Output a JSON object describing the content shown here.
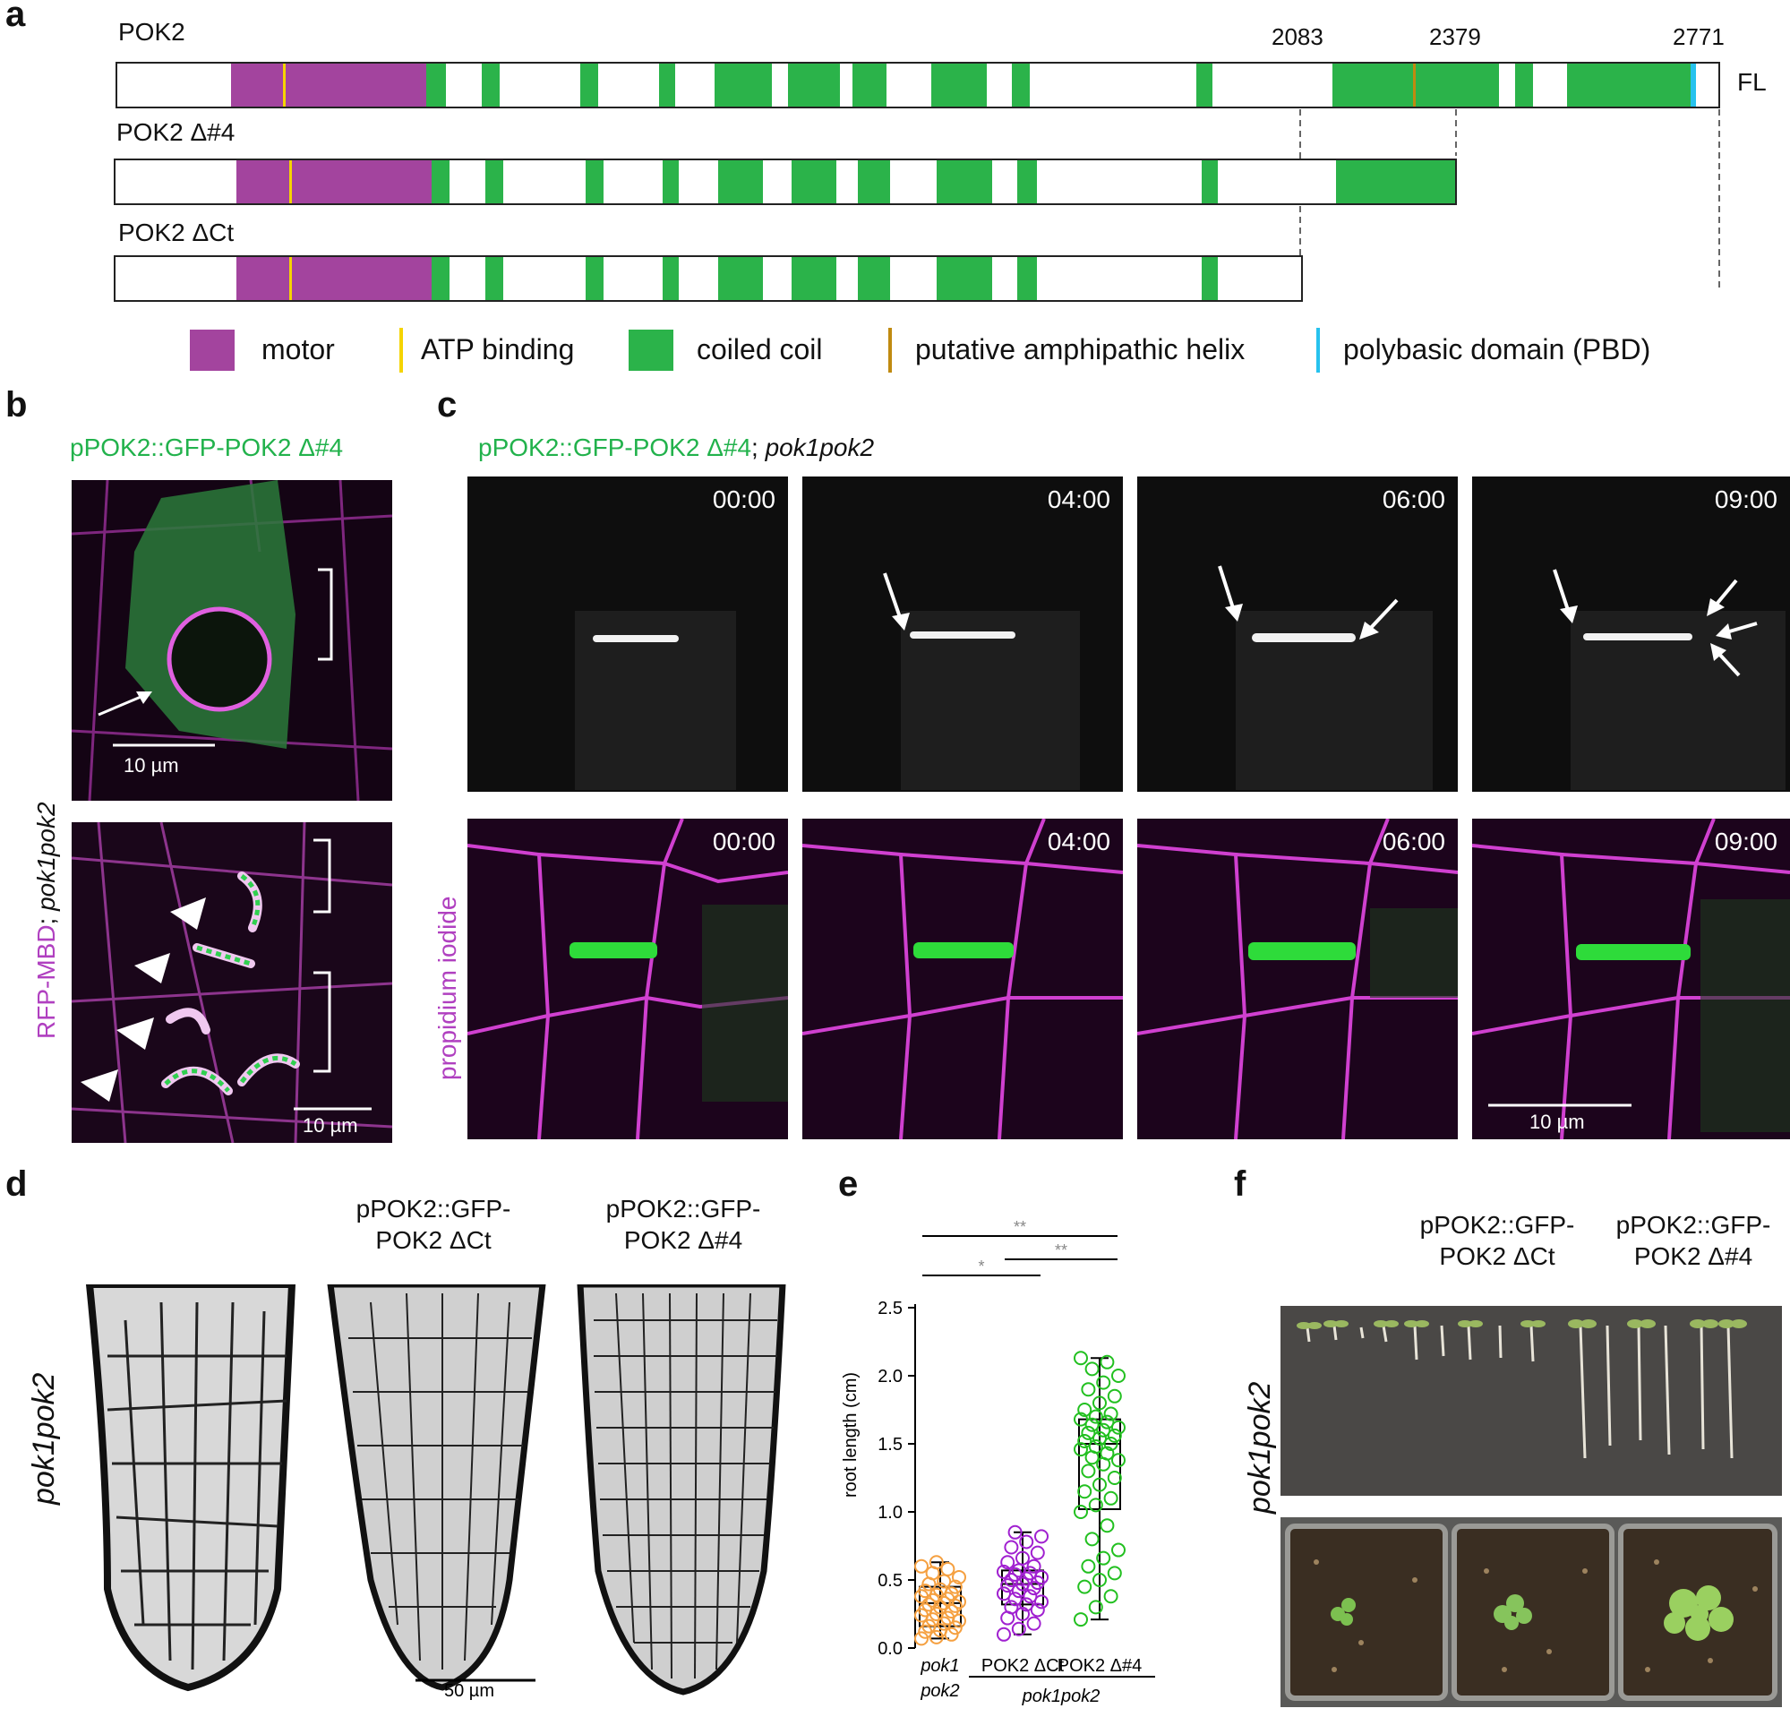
{
  "panel_labels": {
    "a": "a",
    "b": "b",
    "c": "c",
    "d": "d",
    "e": "e",
    "f": "f"
  },
  "panel_a": {
    "constructs": [
      {
        "name": "POK2",
        "end_label": "FL"
      },
      {
        "name": "POK2 Δ#4"
      },
      {
        "name": "POK2 ΔCt"
      }
    ],
    "positions": [
      "2083",
      "2379",
      "2771"
    ],
    "legend": [
      {
        "label": "motor",
        "color": "#a3449e"
      },
      {
        "label": "ATP binding",
        "color": "#f5d400"
      },
      {
        "label": "coiled coil",
        "color": "#2bb34a"
      },
      {
        "label": "putative amphipathic helix",
        "color": "#c08a10"
      },
      {
        "label": "polybasic domain (PBD)",
        "color": "#26c2ee"
      }
    ]
  },
  "panel_b": {
    "title": "pPOK2::GFP-POK2 Δ#4",
    "side_label_1": "RFP-MBD",
    "side_label_2": "; ",
    "side_label_3": "pok1pok2",
    "scale_top": "10 µm",
    "scale_bottom": "10 µm"
  },
  "panel_c": {
    "title_green": "pPOK2::GFP-POK2 Δ#4",
    "title_sep": "; ",
    "title_ital": "pok1pok2",
    "row_label": "propidium iodide",
    "timestamps": [
      "00:00",
      "04:00",
      "06:00",
      "09:00"
    ],
    "scale": "10 µm"
  },
  "panel_d": {
    "row_label": "pok1pok2",
    "col_titles": [
      "",
      "pPOK2::GFP-\nPOK2 ΔCt",
      "pPOK2::GFP-\nPOK2 Δ#4"
    ],
    "scale": "50 µm"
  },
  "panel_f": {
    "row_label": "pok1pok2",
    "col_titles": [
      "pPOK2::GFP-\nPOK2 ΔCt",
      "pPOK2::GFP-\nPOK2 Δ#4"
    ]
  },
  "chart_data": {
    "type": "box",
    "ylabel": "root length (cm)",
    "ylim": [
      0,
      2.5
    ],
    "yticks": [
      "0.0",
      "0.5",
      "1.0",
      "1.5",
      "2.0",
      "2.5"
    ],
    "categories": [
      "pok1 pok2",
      "POK2 ΔCt",
      "POK2 Δ#4"
    ],
    "category_lines": [
      [
        "pok1",
        "pok2"
      ],
      [
        "POK2 ΔCt"
      ],
      [
        "POK2 Δ#4"
      ]
    ],
    "group_label": "pok1pok2",
    "series": [
      {
        "colors": "#f5a040",
        "min": 0.07,
        "q1": 0.16,
        "median": 0.33,
        "q3": 0.45,
        "max": 0.63,
        "points": [
          0.07,
          0.08,
          0.1,
          0.12,
          0.13,
          0.15,
          0.16,
          0.18,
          0.2,
          0.21,
          0.22,
          0.24,
          0.25,
          0.27,
          0.28,
          0.3,
          0.31,
          0.32,
          0.33,
          0.34,
          0.35,
          0.36,
          0.38,
          0.39,
          0.4,
          0.42,
          0.43,
          0.45,
          0.47,
          0.49,
          0.52,
          0.55,
          0.58,
          0.6,
          0.63
        ]
      },
      {
        "colors": "#a020d0",
        "min": 0.1,
        "q1": 0.32,
        "median": 0.47,
        "q3": 0.57,
        "max": 0.85,
        "points": [
          0.1,
          0.14,
          0.18,
          0.22,
          0.25,
          0.28,
          0.3,
          0.32,
          0.34,
          0.36,
          0.38,
          0.4,
          0.42,
          0.44,
          0.46,
          0.47,
          0.48,
          0.5,
          0.51,
          0.52,
          0.54,
          0.55,
          0.56,
          0.57,
          0.6,
          0.63,
          0.66,
          0.7,
          0.74,
          0.78,
          0.82,
          0.85
        ]
      },
      {
        "colors": "#22c020",
        "min": 0.21,
        "q1": 1.02,
        "median": 1.5,
        "q3": 1.68,
        "max": 2.13,
        "points": [
          0.21,
          0.3,
          0.38,
          0.45,
          0.5,
          0.55,
          0.6,
          0.66,
          0.72,
          0.8,
          0.9,
          1.0,
          1.05,
          1.1,
          1.15,
          1.2,
          1.25,
          1.3,
          1.35,
          1.38,
          1.4,
          1.43,
          1.46,
          1.48,
          1.5,
          1.52,
          1.54,
          1.56,
          1.58,
          1.6,
          1.62,
          1.64,
          1.66,
          1.68,
          1.7,
          1.72,
          1.75,
          1.8,
          1.85,
          1.9,
          1.95,
          2.0,
          2.05,
          2.1,
          2.13
        ]
      }
    ],
    "significance": [
      {
        "from": 0,
        "to": 2,
        "label": "**"
      },
      {
        "from": 0,
        "to": 1,
        "label": "*"
      },
      {
        "from": 1,
        "to": 2,
        "label": "**"
      }
    ]
  }
}
